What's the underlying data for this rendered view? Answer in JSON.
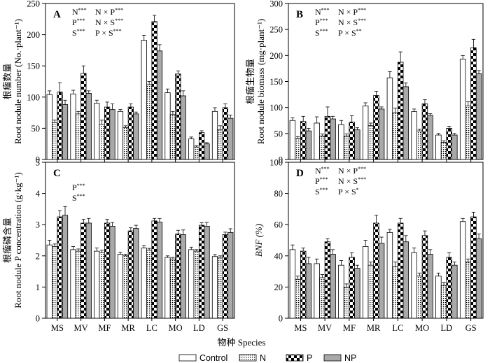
{
  "figure": {
    "x_title": "物种 Species",
    "legend": [
      "Control",
      "N",
      "P",
      "NP"
    ]
  },
  "styles": {
    "Control": "white",
    "N": "dotted",
    "P": "checker",
    "NP": "gray",
    "NP_color": "#a9a9a9"
  },
  "chart_data": [
    {
      "panel": "A",
      "type": "bar",
      "ylabel": [
        "根瘤数量",
        "Root nodule number (No.·plant⁻¹)"
      ],
      "ylim": [
        0,
        250
      ],
      "yticks": [
        0,
        50,
        100,
        150,
        200,
        250
      ],
      "categories": [
        "MS",
        "MV",
        "MF",
        "MR",
        "LC",
        "MO",
        "LD",
        "GS"
      ],
      "series": [
        {
          "name": "Control",
          "values": [
            104,
            105,
            90,
            77,
            191,
            107,
            33,
            77
          ],
          "errors": [
            6,
            6,
            5,
            3,
            8,
            6,
            3,
            6
          ]
        },
        {
          "name": "N",
          "values": [
            59,
            73,
            56,
            51,
            120,
            72,
            20,
            48
          ],
          "errors": [
            4,
            4,
            7,
            3,
            5,
            5,
            2,
            6
          ]
        },
        {
          "name": "P",
          "values": [
            108,
            138,
            84,
            84,
            221,
            137,
            43,
            83
          ],
          "errors": [
            15,
            12,
            8,
            5,
            10,
            5,
            3,
            6
          ]
        },
        {
          "name": "NP",
          "values": [
            88,
            106,
            80,
            73,
            174,
            102,
            25,
            66
          ],
          "errors": [
            7,
            4,
            9,
            3,
            10,
            8,
            2,
            5
          ]
        }
      ],
      "annotations": [
        [
          {
            "text": "N",
            "sup": "***"
          },
          {
            "text": "P",
            "sup": "***"
          },
          {
            "text": "S",
            "sup": "***"
          }
        ],
        [
          {
            "text": "N × P",
            "sup": "***"
          },
          {
            "text": "N × S",
            "sup": "***"
          },
          {
            "text": "P × S",
            "sup": "***"
          }
        ]
      ]
    },
    {
      "panel": "B",
      "type": "bar",
      "ylabel": [
        "根瘤生物量",
        "Root nodule biomass (mg·plant⁻¹)"
      ],
      "ylim": [
        0,
        300
      ],
      "yticks": [
        0,
        50,
        100,
        150,
        200,
        250,
        300
      ],
      "categories": [
        "MS",
        "MV",
        "MF",
        "MR",
        "LC",
        "MO",
        "LD",
        "GS"
      ],
      "series": [
        {
          "name": "Control",
          "values": [
            75,
            70,
            67,
            103,
            157,
            92,
            47,
            193
          ],
          "errors": [
            5,
            12,
            8,
            6,
            12,
            5,
            3,
            7
          ]
        },
        {
          "name": "N",
          "values": [
            40,
            45,
            45,
            65,
            90,
            55,
            33,
            103
          ],
          "errors": [
            4,
            4,
            4,
            5,
            9,
            3,
            3,
            8
          ]
        },
        {
          "name": "P",
          "values": [
            73,
            83,
            72,
            123,
            187,
            107,
            60,
            215
          ],
          "errors": [
            10,
            18,
            12,
            8,
            20,
            8,
            4,
            16
          ]
        },
        {
          "name": "NP",
          "values": [
            55,
            78,
            57,
            97,
            140,
            85,
            47,
            165
          ],
          "errors": [
            5,
            5,
            4,
            4,
            7,
            3,
            3,
            6
          ]
        }
      ],
      "annotations": [
        [
          {
            "text": "N",
            "sup": "***"
          },
          {
            "text": "P",
            "sup": "***"
          },
          {
            "text": "S",
            "sup": "***"
          }
        ],
        [
          {
            "text": "N × P",
            "sup": "***"
          },
          {
            "text": "N × S",
            "sup": "***"
          },
          {
            "text": "P × S",
            "sup": "**"
          }
        ]
      ]
    },
    {
      "panel": "C",
      "type": "bar",
      "ylabel": [
        "根瘤磷含量",
        "Root nodule P concentration (g·kg⁻¹)"
      ],
      "ylim": [
        0,
        5
      ],
      "yticks": [
        0,
        1,
        2,
        3,
        4,
        5
      ],
      "categories": [
        "MS",
        "MV",
        "MF",
        "MR",
        "LC",
        "MO",
        "LD",
        "GS"
      ],
      "series": [
        {
          "name": "Control",
          "values": [
            2.35,
            2.2,
            2.15,
            2.05,
            2.25,
            1.95,
            2.2,
            1.98
          ],
          "errors": [
            0.15,
            0.1,
            0.1,
            0.07,
            0.08,
            0.05,
            0.08,
            0.06
          ]
        },
        {
          "name": "N",
          "values": [
            2.3,
            2.15,
            2.1,
            2.0,
            2.18,
            1.9,
            2.15,
            1.95
          ],
          "errors": [
            0.08,
            0.07,
            0.08,
            0.05,
            0.06,
            0.05,
            0.05,
            0.05
          ]
        },
        {
          "name": "P",
          "values": [
            3.25,
            3.05,
            3.05,
            2.8,
            3.12,
            2.7,
            2.98,
            2.68
          ],
          "errors": [
            0.2,
            0.12,
            0.12,
            0.1,
            0.08,
            0.12,
            0.08,
            0.08
          ]
        },
        {
          "name": "NP",
          "values": [
            3.3,
            3.05,
            2.95,
            2.88,
            3.08,
            2.68,
            2.95,
            2.75
          ],
          "errors": [
            0.28,
            0.15,
            0.12,
            0.1,
            0.12,
            0.15,
            0.12,
            0.12
          ]
        }
      ],
      "annotations": [
        [
          {
            "text": "P",
            "sup": "***"
          },
          {
            "text": "S",
            "sup": "***"
          }
        ]
      ]
    },
    {
      "panel": "D",
      "type": "bar",
      "ylabel": [
        "BNF (%)"
      ],
      "ylim": [
        0,
        100
      ],
      "yticks": [
        0,
        20,
        40,
        60,
        80,
        100
      ],
      "categories": [
        "MS",
        "MV",
        "MF",
        "MR",
        "LC",
        "MO",
        "LD",
        "GS"
      ],
      "series": [
        {
          "name": "Control",
          "values": [
            44,
            35,
            34,
            46,
            55,
            42,
            27,
            62
          ],
          "errors": [
            3,
            3,
            3,
            4,
            2,
            3,
            2,
            2
          ]
        },
        {
          "name": "N",
          "values": [
            25,
            26,
            20,
            34,
            33,
            27,
            21,
            36
          ],
          "errors": [
            2,
            2,
            2,
            2,
            3,
            2,
            2,
            2
          ]
        },
        {
          "name": "P",
          "values": [
            43,
            49,
            39,
            61,
            61,
            53,
            39,
            65
          ],
          "errors": [
            2,
            2,
            3,
            5,
            3,
            3,
            3,
            3
          ]
        },
        {
          "name": "NP",
          "values": [
            35,
            41,
            32,
            48,
            49,
            41,
            34,
            51
          ],
          "errors": [
            4,
            3,
            2,
            4,
            4,
            3,
            2,
            3
          ]
        }
      ],
      "annotations": [
        [
          {
            "text": "N",
            "sup": "***"
          },
          {
            "text": "P",
            "sup": "***"
          },
          {
            "text": "S",
            "sup": "***"
          }
        ],
        [
          {
            "text": "N × P",
            "sup": "***"
          },
          {
            "text": "N × S",
            "sup": "***"
          },
          {
            "text": "P × S",
            "sup": "*"
          }
        ]
      ]
    }
  ]
}
